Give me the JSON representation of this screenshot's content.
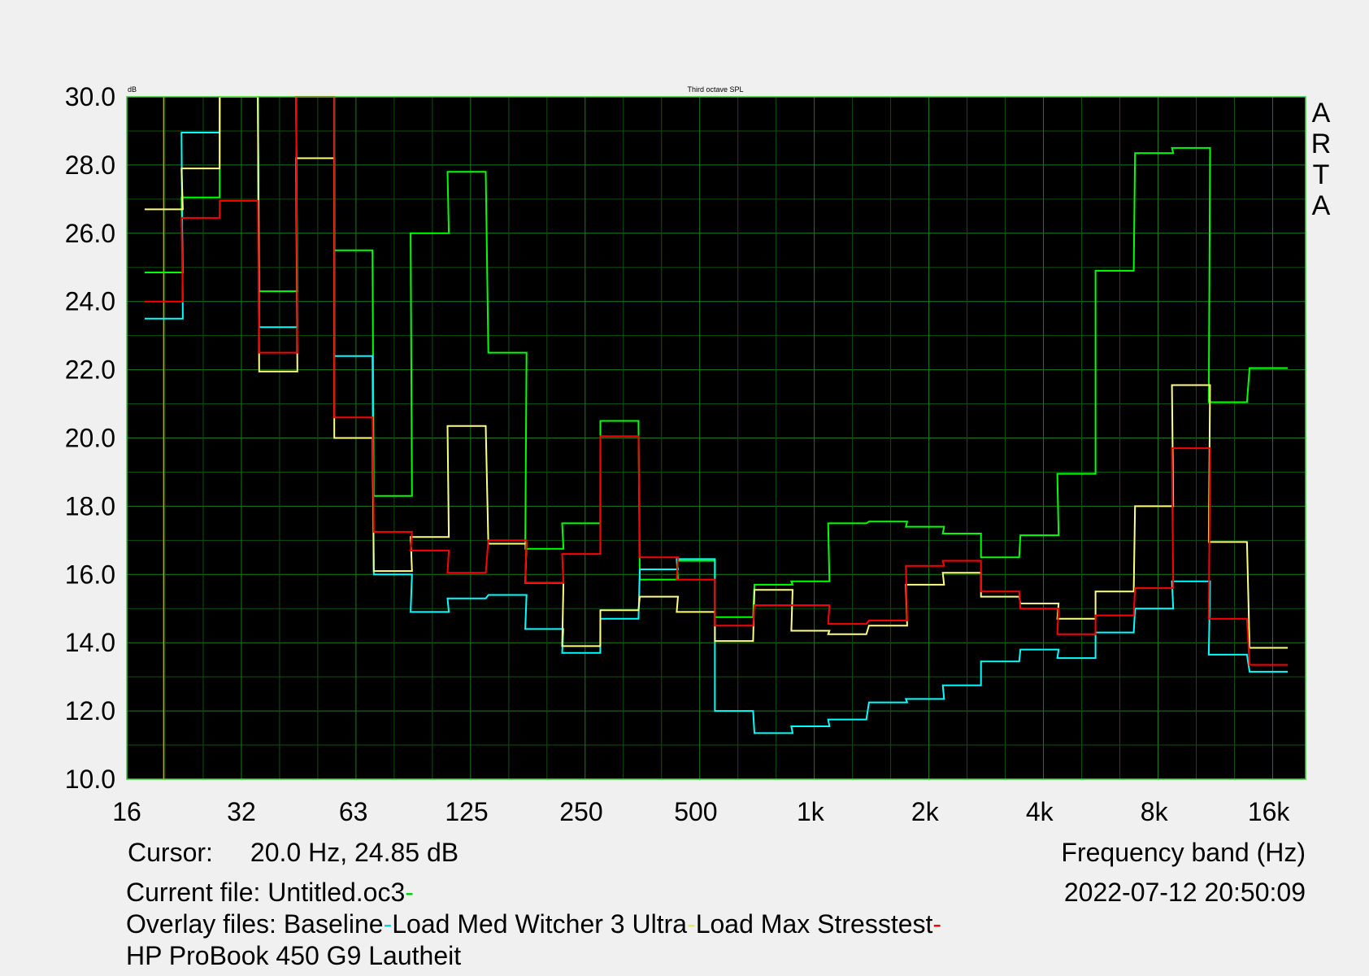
{
  "chart_data": {
    "type": "line",
    "title": "Third octave SPL",
    "ylabel": "dB",
    "xlabel": "Frequency band (Hz)",
    "x_scale": "log",
    "xlim": [
      16,
      20000
    ],
    "ylim": [
      10,
      30
    ],
    "y_ticks": [
      "30.0",
      "28.0",
      "26.0",
      "24.0",
      "22.0",
      "20.0",
      "18.0",
      "16.0",
      "14.0",
      "12.0",
      "10.0"
    ],
    "x_ticks": [
      {
        "label": "16",
        "value": 16
      },
      {
        "label": "32",
        "value": 32
      },
      {
        "label": "63",
        "value": 63
      },
      {
        "label": "125",
        "value": 125
      },
      {
        "label": "250",
        "value": 250
      },
      {
        "label": "500",
        "value": 500
      },
      {
        "label": "1k",
        "value": 1000
      },
      {
        "label": "2k",
        "value": 2000
      },
      {
        "label": "4k",
        "value": 4000
      },
      {
        "label": "8k",
        "value": 8000
      },
      {
        "label": "16k",
        "value": 16000
      }
    ],
    "grid": true,
    "cursor_freq": 20,
    "bands": [
      20,
      25,
      31.5,
      40,
      50,
      63,
      80,
      100,
      125,
      160,
      200,
      250,
      315,
      400,
      500,
      630,
      800,
      1000,
      1250,
      1600,
      2000,
      2500,
      3150,
      4000,
      5000,
      6300,
      8000,
      10000,
      12500,
      16000
    ],
    "series": [
      {
        "name": "Untitled.oc3",
        "color": "#00ff00",
        "values": [
          24.85,
          27.05,
          30.0,
          24.3,
          30.0,
          25.5,
          18.3,
          26.0,
          27.8,
          22.5,
          16.75,
          17.5,
          20.5,
          15.85,
          16.4,
          14.75,
          15.7,
          15.8,
          17.5,
          17.55,
          17.4,
          17.2,
          16.5,
          17.15,
          18.95,
          24.9,
          28.35,
          28.5,
          21.05,
          22.05
        ]
      },
      {
        "name": "Baseline",
        "color": "#00ffff",
        "values": [
          23.5,
          28.95,
          30.0,
          23.25,
          30.0,
          22.4,
          16.0,
          14.9,
          15.3,
          15.4,
          14.4,
          13.7,
          14.7,
          16.15,
          16.45,
          12.0,
          11.35,
          11.55,
          11.75,
          12.25,
          12.35,
          12.75,
          13.45,
          13.8,
          13.55,
          14.3,
          15.0,
          15.8,
          13.65,
          13.15
        ]
      },
      {
        "name": "Load Med Witcher 3 Ultra",
        "color": "#ffff80",
        "values": [
          26.7,
          27.9,
          30.0,
          21.95,
          28.2,
          20.0,
          16.1,
          17.1,
          20.35,
          16.9,
          15.75,
          13.9,
          14.95,
          15.35,
          14.9,
          14.05,
          15.55,
          14.35,
          14.25,
          14.5,
          15.7,
          16.05,
          15.35,
          15.15,
          14.7,
          15.5,
          18.0,
          21.55,
          16.95,
          13.85
        ]
      },
      {
        "name": "Load Max Stresstest",
        "color": "#ff0000",
        "values": [
          24.0,
          26.45,
          26.95,
          22.5,
          30.0,
          20.6,
          17.25,
          16.7,
          16.05,
          17.0,
          15.75,
          16.6,
          20.05,
          16.5,
          15.85,
          14.5,
          15.1,
          15.1,
          14.55,
          14.65,
          16.25,
          16.4,
          15.5,
          15.0,
          14.25,
          14.8,
          15.6,
          19.7,
          14.7,
          13.35
        ]
      }
    ]
  },
  "cursor_label": "Cursor:",
  "cursor_value": "20.0 Hz, 24.85 dB",
  "xaxis_title": "Frequency band (Hz)",
  "current_file_label": "Current file: Untitled.oc3",
  "overlay_prefix": "Overlay files: ",
  "overlays": [
    "Baseline",
    "Load Med Witcher 3 Ultra",
    "Load Max Stresstest"
  ],
  "timestamp": "2022-07-12  20:50:09",
  "caption": "HP ProBook 450 G9 Lautheit",
  "arta_letters": [
    "A",
    "R",
    "T",
    "A"
  ]
}
